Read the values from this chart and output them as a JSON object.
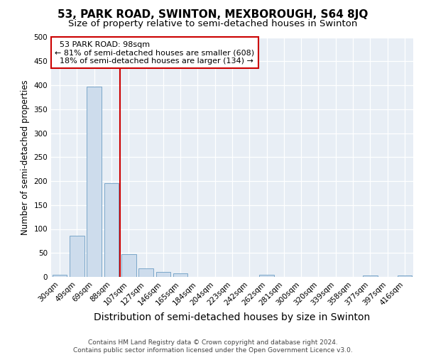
{
  "title": "53, PARK ROAD, SWINTON, MEXBOROUGH, S64 8JQ",
  "subtitle": "Size of property relative to semi-detached houses in Swinton",
  "xlabel": "Distribution of semi-detached houses by size in Swinton",
  "ylabel": "Number of semi-detached properties",
  "footer_line1": "Contains HM Land Registry data © Crown copyright and database right 2024.",
  "footer_line2": "Contains public sector information licensed under the Open Government Licence v3.0.",
  "property_label": "53 PARK ROAD: 98sqm",
  "smaller_text": "← 81% of semi-detached houses are smaller (608)",
  "larger_text": "18% of semi-detached houses are larger (134) →",
  "bar_color": "#cddcec",
  "bar_edge_color": "#7ba7c9",
  "vline_color": "#cc0000",
  "categories": [
    "30sqm",
    "49sqm",
    "69sqm",
    "88sqm",
    "107sqm",
    "127sqm",
    "146sqm",
    "165sqm",
    "184sqm",
    "204sqm",
    "223sqm",
    "242sqm",
    "262sqm",
    "281sqm",
    "300sqm",
    "320sqm",
    "339sqm",
    "358sqm",
    "377sqm",
    "397sqm",
    "416sqm"
  ],
  "values": [
    5,
    86,
    397,
    196,
    48,
    18,
    10,
    7,
    0,
    0,
    0,
    0,
    5,
    0,
    0,
    0,
    0,
    0,
    3,
    0,
    3
  ],
  "vline_x": 3.5,
  "ylim": [
    0,
    500
  ],
  "yticks": [
    0,
    50,
    100,
    150,
    200,
    250,
    300,
    350,
    400,
    450,
    500
  ],
  "annotation_box_color": "#ffffff",
  "annotation_box_edge": "#cc0000",
  "bg_color": "#e8eef5",
  "title_fontsize": 11,
  "subtitle_fontsize": 9.5,
  "xlabel_fontsize": 10,
  "ylabel_fontsize": 8.5,
  "tick_fontsize": 7.5,
  "ann_fontsize": 8,
  "footer_fontsize": 6.5
}
